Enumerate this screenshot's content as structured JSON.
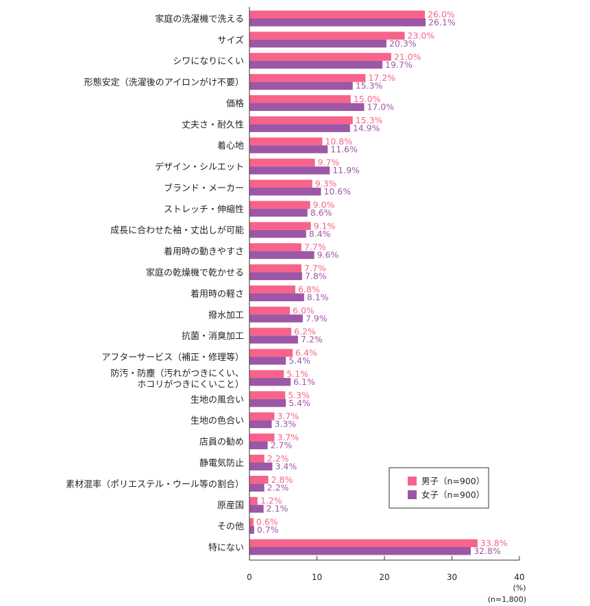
{
  "chart_data": {
    "type": "bar",
    "orientation": "horizontal",
    "categories": [
      "家庭の洗濯機で洗える",
      "サイズ",
      "シワになりにくい",
      "形態安定（洗濯後のアイロンがけ不要）",
      "価格",
      "丈夫さ・耐久性",
      "着心地",
      "デザイン・シルエット",
      "ブランド・メーカー",
      "ストレッチ・伸縮性",
      "成長に合わせた袖・丈出しが可能",
      "着用時の動きやすさ",
      "家庭の乾燥機で乾かせる",
      "着用時の軽さ",
      "撥水加工",
      "抗菌・消臭加工",
      "アフターサービス（補正・修理等）",
      [
        "防汚・防塵（汚れがつきにくい、",
        "ホコリがつきにくいこと）"
      ],
      "生地の風合い",
      "生地の色合い",
      "店員の勧め",
      "静電気防止",
      "素材混率（ポリエステル・ウール等の割合）",
      "原産国",
      "その他",
      "特にない"
    ],
    "series": [
      {
        "name": "男子（n=900）",
        "color": "#f7638a",
        "values": [
          26.0,
          23.0,
          21.0,
          17.2,
          15.0,
          15.3,
          10.8,
          9.7,
          9.3,
          9.0,
          9.1,
          7.7,
          7.7,
          6.8,
          6.0,
          6.2,
          6.4,
          5.1,
          5.3,
          3.7,
          3.7,
          2.2,
          2.8,
          1.2,
          0.6,
          33.8
        ],
        "labels": [
          "26.0%",
          "23.0%",
          "21.0%",
          "17.2%",
          "15.0%",
          "15.3%",
          "10.8%",
          "9.7%",
          "9.3%",
          "9.0%",
          "9.1%",
          "7.7%",
          "7.7%",
          "6.8%",
          "6.0%",
          "6.2%",
          "6.4%",
          "5.1%",
          "5.3%",
          "3.7%",
          "3.7%",
          "2.2%",
          "2.8%",
          "1.2%",
          "0.6%",
          "33.8%"
        ]
      },
      {
        "name": "女子（n=900）",
        "color": "#9c57a6",
        "values": [
          26.1,
          20.3,
          19.7,
          15.3,
          17.0,
          14.9,
          11.6,
          11.9,
          10.6,
          8.6,
          8.4,
          9.6,
          7.8,
          8.1,
          7.9,
          7.2,
          5.4,
          6.1,
          5.4,
          3.3,
          2.7,
          3.4,
          2.2,
          2.1,
          0.7,
          32.8
        ],
        "labels": [
          "26.1%",
          "20.3%",
          "19.7%",
          "15.3%",
          "17.0%",
          "14.9%",
          "11.6%",
          "11.9%",
          "10.6%",
          "8.6%",
          "8.4%",
          "9.6%",
          "7.8%",
          "8.1%",
          "7.9%",
          "7.2%",
          "5.4%",
          "6.1%",
          "5.4%",
          "3.3%",
          "2.7%",
          "3.4%",
          "2.2%",
          "2.1%",
          "0.7%",
          "32.8%"
        ]
      }
    ],
    "xlim": [
      0,
      40
    ],
    "xticks": [
      0,
      10,
      20,
      30,
      40
    ],
    "xtick_labels": [
      "0",
      "10",
      "20",
      "30",
      "40"
    ],
    "unit_label": "(%)",
    "sample_note": "(n=1,800)",
    "legend_position": "lower-right",
    "grid": false
  }
}
